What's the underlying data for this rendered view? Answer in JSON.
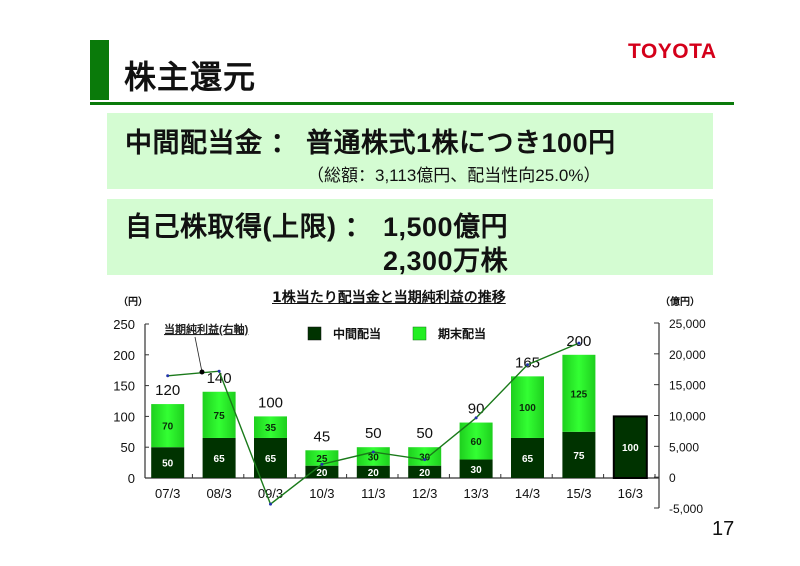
{
  "header": {
    "title": "株主還元",
    "logo": "TOYOTA",
    "accent_color": "#0a7a0a",
    "logo_color": "#d4001a"
  },
  "box1": {
    "line1": "中間配当金 ： 普通株式1株につき100円",
    "line2": "（総額：3,113億円、配当性向25.0%）"
  },
  "box2": {
    "label": "自己株取得(上限) ：",
    "value1": "1,500億円",
    "value2": "2,300万株"
  },
  "page_number": "17",
  "chart_data": {
    "type": "bar",
    "title": "1株当たり配当金と当期純利益の推移",
    "left_unit": "（円）",
    "right_unit": "（億円）",
    "categories": [
      "07/3",
      "08/3",
      "09/3",
      "10/3",
      "11/3",
      "12/3",
      "13/3",
      "14/3",
      "15/3",
      "16/3"
    ],
    "series": [
      {
        "name": "中間配当",
        "color": "#003300",
        "values": [
          50,
          65,
          65,
          20,
          20,
          20,
          30,
          65,
          75,
          100
        ]
      },
      {
        "name": "期末配当",
        "color": "#22dd22",
        "values": [
          70,
          75,
          35,
          25,
          30,
          30,
          60,
          100,
          125,
          null
        ]
      },
      {
        "name": "当期純利益(右軸)",
        "type": "line",
        "color": "#1a7a1a",
        "axis": "right",
        "values": [
          16440,
          17180,
          -4370,
          2090,
          4080,
          2840,
          9620,
          18230,
          21730,
          null
        ]
      }
    ],
    "totals": [
      120,
      140,
      100,
      45,
      50,
      50,
      90,
      165,
      200,
      null
    ],
    "line_label": "当期純利益(右軸)",
    "ylim_left": [
      0,
      250
    ],
    "yticks_left": [
      "0",
      "50",
      "100",
      "150",
      "200",
      "250"
    ],
    "ylim_right": [
      -5000,
      25000
    ],
    "yticks_right": [
      "-5,000",
      "0",
      "5,000",
      "10,000",
      "15,000",
      "20,000",
      "25,000"
    ],
    "legend": [
      "中間配当",
      "期末配当"
    ],
    "legend_position": "top"
  }
}
